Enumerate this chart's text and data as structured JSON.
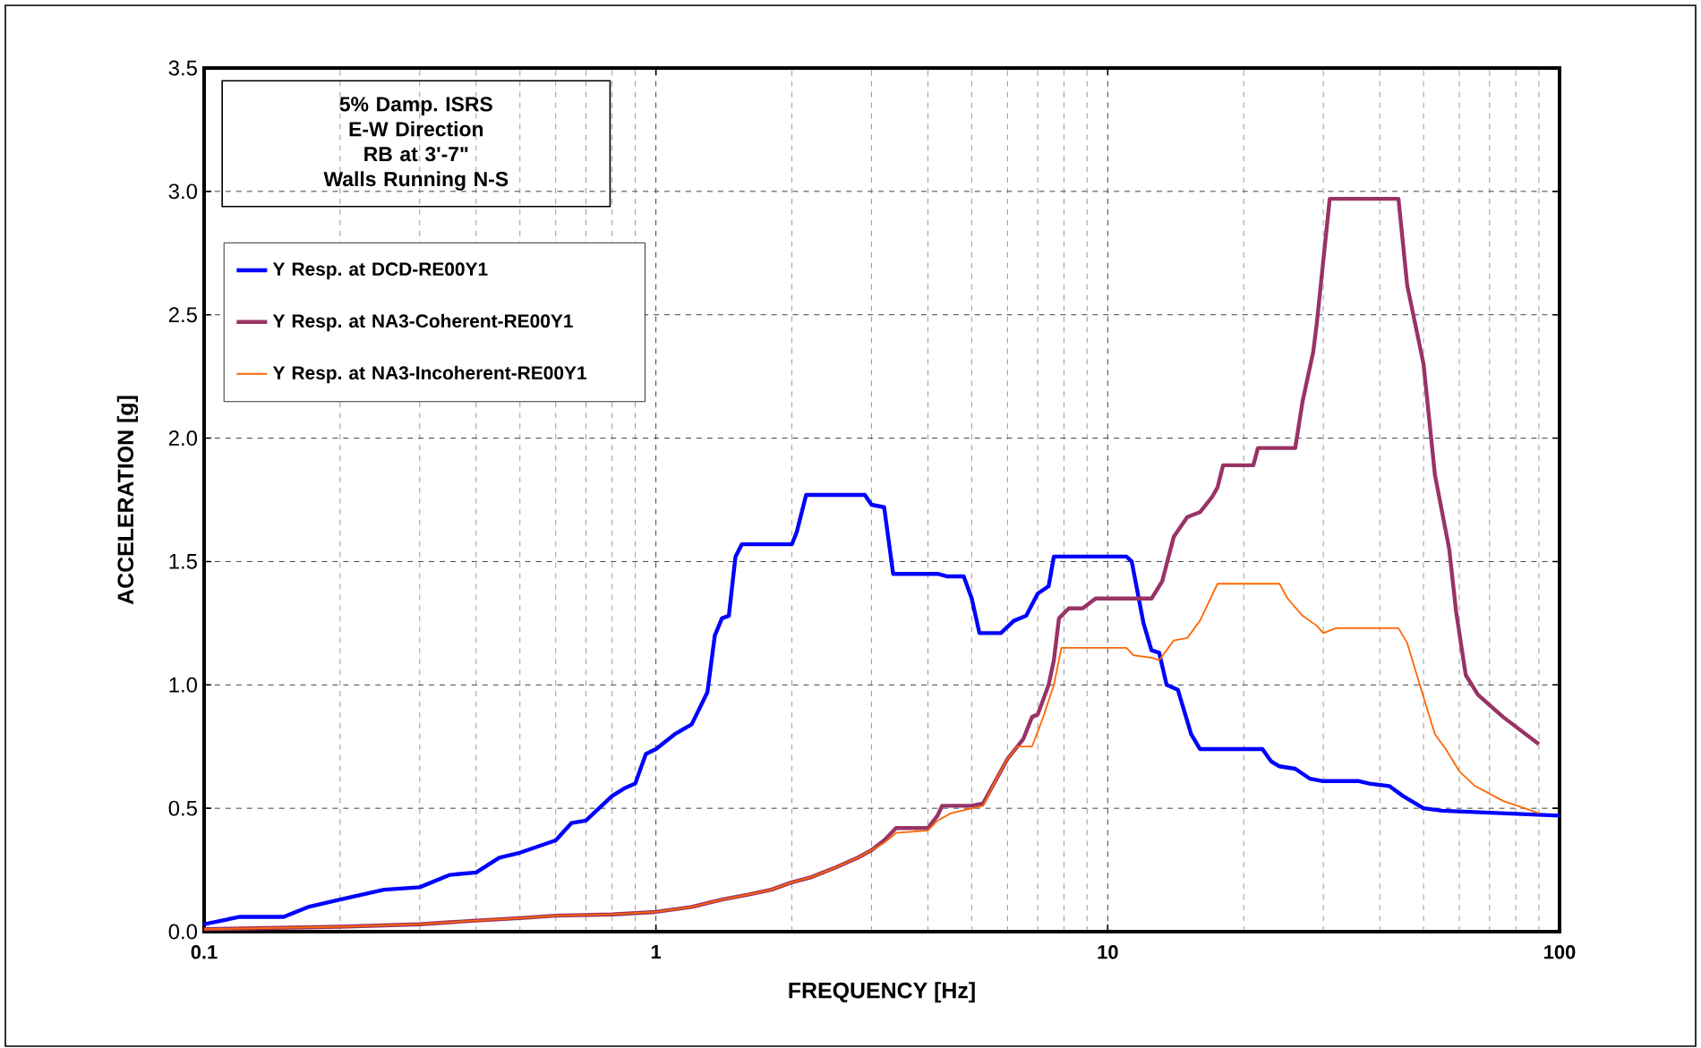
{
  "chart_data": {
    "type": "line",
    "annotations": [
      "5% Damp. ISRS",
      "E-W Direction",
      "RB  at 3'-7\"",
      "Walls Running N-S"
    ],
    "xlabel": "FREQUENCY [Hz]",
    "ylabel": "ACCELERATION [g]",
    "log": "x",
    "grid": true,
    "legend": "top left",
    "line_style": "solid",
    "xlim": [
      0.1,
      100
    ],
    "xticks": [
      0.1,
      1,
      10,
      100
    ],
    "ylim": [
      0,
      3.5
    ],
    "yticks": [
      {
        "value": 0,
        "label": "0.0"
      },
      {
        "value": 0.5,
        "label": "0.5"
      },
      {
        "value": 1,
        "label": "1.0"
      },
      {
        "value": 1.5,
        "label": "1.5"
      },
      {
        "value": 2,
        "label": "2.0"
      },
      {
        "value": 2.5,
        "label": "2.5"
      },
      {
        "value": 3,
        "label": "3.0"
      },
      {
        "value": 3.5,
        "label": "3.5"
      }
    ],
    "series": [
      {
        "name": "Y Resp. at DCD-RE00Y1",
        "color": "#0000ff",
        "x": [
          0.1,
          0.12,
          0.15,
          0.17,
          0.2,
          0.25,
          0.3,
          0.35,
          0.4,
          0.45,
          0.5,
          0.6,
          0.65,
          0.7,
          0.8,
          0.85,
          0.9,
          0.95,
          1.0,
          1.1,
          1.2,
          1.3,
          1.35,
          1.4,
          1.45,
          1.5,
          1.55,
          2.0,
          2.05,
          2.15,
          2.9,
          3.0,
          3.2,
          3.35,
          4.2,
          4.4,
          4.8,
          5.0,
          5.2,
          5.8,
          6.2,
          6.6,
          7.0,
          7.4,
          7.6,
          11.0,
          11.3,
          12.0,
          12.5,
          13.0,
          13.5,
          14.3,
          15.3,
          16.0,
          22.0,
          23.0,
          24.0,
          26.0,
          28.0,
          30.0,
          36.0,
          38.0,
          42.0,
          45.0,
          50.0,
          55.0,
          100.0
        ],
        "values": [
          0.03,
          0.06,
          0.06,
          0.1,
          0.13,
          0.17,
          0.18,
          0.23,
          0.24,
          0.3,
          0.32,
          0.37,
          0.44,
          0.45,
          0.55,
          0.58,
          0.6,
          0.72,
          0.74,
          0.8,
          0.84,
          0.97,
          1.2,
          1.27,
          1.28,
          1.52,
          1.57,
          1.57,
          1.62,
          1.77,
          1.77,
          1.73,
          1.72,
          1.45,
          1.45,
          1.44,
          1.44,
          1.35,
          1.21,
          1.21,
          1.26,
          1.28,
          1.37,
          1.4,
          1.52,
          1.52,
          1.5,
          1.25,
          1.14,
          1.13,
          1.0,
          0.98,
          0.8,
          0.74,
          0.74,
          0.69,
          0.67,
          0.66,
          0.62,
          0.61,
          0.61,
          0.6,
          0.59,
          0.55,
          0.5,
          0.49,
          0.47
        ]
      },
      {
        "name": "Y Resp. at NA3-Coherent-RE00Y1",
        "color": "#993366",
        "x": [
          0.1,
          0.2,
          0.3,
          0.4,
          0.5,
          0.6,
          0.8,
          1.0,
          1.2,
          1.4,
          1.6,
          1.8,
          2.0,
          2.2,
          2.5,
          2.8,
          3.0,
          3.2,
          3.4,
          4.0,
          4.2,
          4.3,
          5.0,
          5.3,
          5.6,
          6.0,
          6.5,
          6.8,
          7.0,
          7.4,
          7.6,
          7.8,
          8.2,
          8.8,
          9.4,
          12.5,
          13.2,
          14.0,
          15.0,
          16.0,
          17.0,
          17.5,
          18.0,
          21.0,
          21.5,
          26.0,
          27.0,
          28.5,
          29.0,
          31.0,
          44.0,
          46.0,
          50.0,
          53.0,
          57.0,
          59.0,
          62.0,
          66.0,
          75.0,
          90.0
        ],
        "values": [
          0.01,
          0.02,
          0.03,
          0.045,
          0.055,
          0.065,
          0.07,
          0.08,
          0.1,
          0.13,
          0.15,
          0.17,
          0.2,
          0.22,
          0.26,
          0.3,
          0.33,
          0.37,
          0.42,
          0.42,
          0.47,
          0.51,
          0.51,
          0.52,
          0.6,
          0.7,
          0.78,
          0.87,
          0.88,
          1.0,
          1.1,
          1.27,
          1.31,
          1.31,
          1.35,
          1.35,
          1.42,
          1.6,
          1.68,
          1.7,
          1.76,
          1.8,
          1.89,
          1.89,
          1.96,
          1.96,
          2.15,
          2.35,
          2.46,
          2.97,
          2.97,
          2.62,
          2.3,
          1.85,
          1.55,
          1.3,
          1.04,
          0.96,
          0.87,
          0.76
        ]
      },
      {
        "name": "Y Resp. at NA3-Incoherent-RE00Y1",
        "color": "#ff6600",
        "x": [
          0.1,
          0.2,
          0.3,
          0.4,
          0.5,
          0.6,
          0.8,
          1.0,
          1.2,
          1.4,
          1.6,
          1.8,
          2.0,
          2.2,
          2.5,
          2.8,
          3.0,
          3.2,
          3.4,
          4.0,
          4.2,
          4.5,
          5.3,
          5.6,
          6.0,
          6.3,
          6.8,
          7.2,
          7.6,
          7.9,
          11.0,
          11.4,
          12.5,
          13.0,
          14.0,
          15.0,
          16.0,
          17.5,
          24.0,
          25.0,
          27.0,
          29.0,
          30.0,
          32.0,
          44.0,
          46.0,
          50.0,
          53.0,
          56.0,
          60.0,
          65.0,
          75.0,
          90.0
        ],
        "values": [
          0.01,
          0.02,
          0.03,
          0.045,
          0.055,
          0.065,
          0.07,
          0.08,
          0.1,
          0.13,
          0.15,
          0.17,
          0.2,
          0.22,
          0.26,
          0.3,
          0.33,
          0.36,
          0.4,
          0.41,
          0.45,
          0.48,
          0.51,
          0.6,
          0.7,
          0.75,
          0.75,
          0.87,
          1.0,
          1.15,
          1.15,
          1.12,
          1.11,
          1.1,
          1.18,
          1.19,
          1.26,
          1.41,
          1.41,
          1.35,
          1.28,
          1.24,
          1.21,
          1.23,
          1.23,
          1.17,
          0.95,
          0.8,
          0.74,
          0.65,
          0.59,
          0.53,
          0.48
        ]
      }
    ]
  }
}
